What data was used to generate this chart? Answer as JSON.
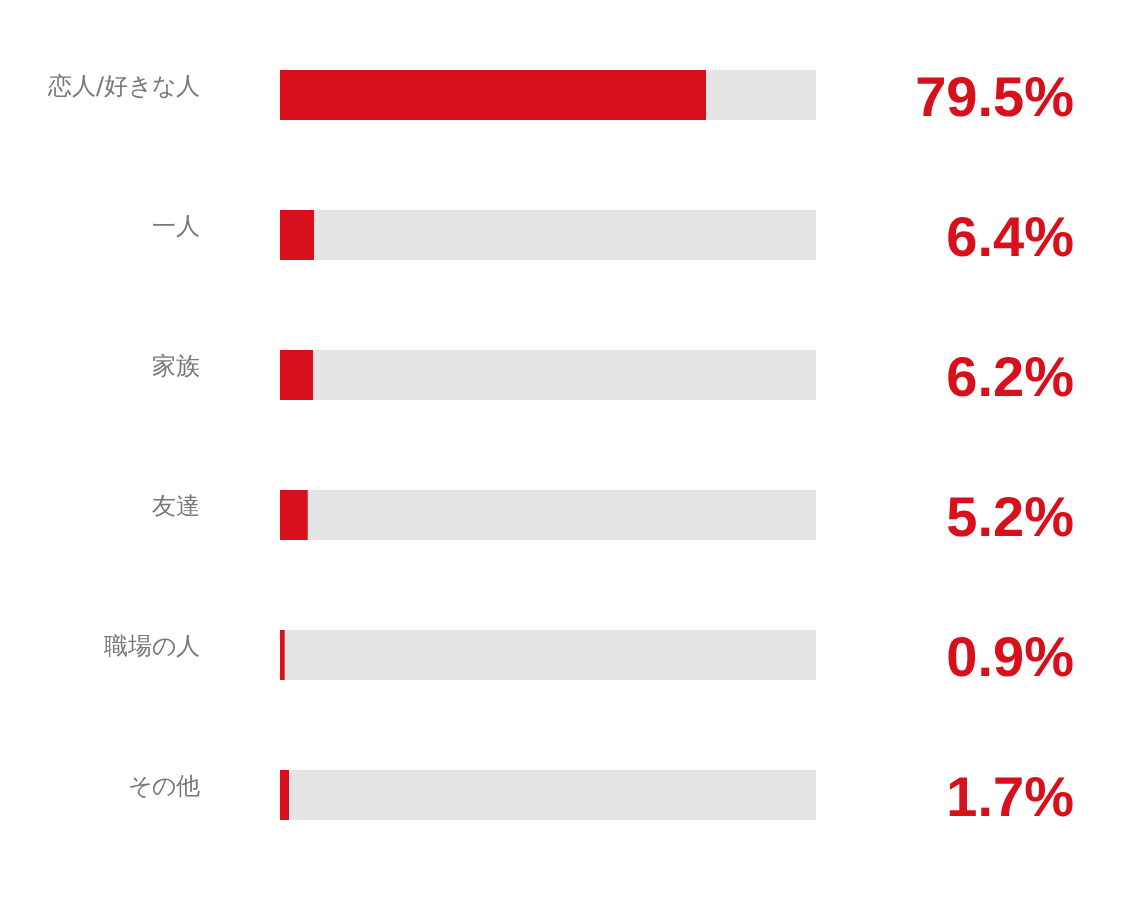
{
  "chart_data": {
    "type": "bar",
    "orientation": "horizontal",
    "stacked": true,
    "categories": [
      "恋人/好きな人",
      "一人",
      "家族",
      "友達",
      "職場の人",
      "その他"
    ],
    "series": [
      {
        "color": "#d7101b",
        "values": [
          79.5,
          6.4,
          6.2,
          5.2,
          0.9,
          1.7
        ],
        "value_labels": [
          "79.5%",
          "6.4%",
          "6.2%",
          "5.2%",
          "0.9%",
          "1.7%"
        ]
      },
      {
        "color": "#e4e4e4",
        "values": [
          20.5,
          93.6,
          93.8,
          94.8,
          99.1,
          98.3
        ]
      }
    ],
    "xlim": [
      0,
      100
    ]
  }
}
